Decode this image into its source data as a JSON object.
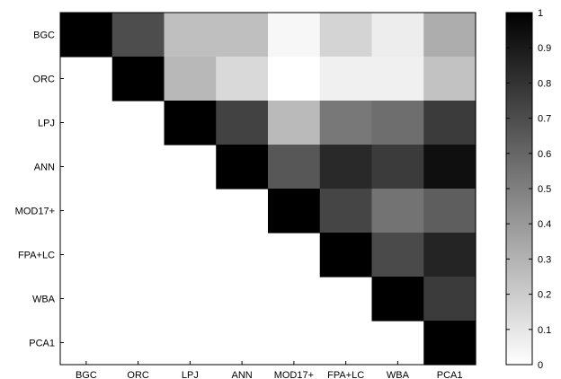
{
  "chart_data": {
    "type": "heatmap",
    "title": "",
    "xlabel": "",
    "ylabel": "",
    "x_categories": [
      "BGC",
      "ORC",
      "LPJ",
      "ANN",
      "MOD17+",
      "FPA+LC",
      "WBA",
      "PCA1"
    ],
    "y_categories": [
      "BGC",
      "ORC",
      "LPJ",
      "ANN",
      "MOD17+",
      "FPA+LC",
      "WBA",
      "PCA1"
    ],
    "matrix": [
      [
        1.0,
        0.7,
        0.25,
        0.25,
        0.03,
        0.17,
        0.07,
        0.32
      ],
      [
        null,
        1.0,
        0.28,
        0.15,
        0.0,
        0.06,
        0.06,
        0.24
      ],
      [
        null,
        null,
        1.0,
        0.74,
        0.27,
        0.53,
        0.57,
        0.77
      ],
      [
        null,
        null,
        null,
        1.0,
        0.66,
        0.84,
        0.77,
        0.94
      ],
      [
        null,
        null,
        null,
        null,
        1.0,
        0.73,
        0.55,
        0.63
      ],
      [
        null,
        null,
        null,
        null,
        null,
        1.0,
        0.71,
        0.86
      ],
      [
        null,
        null,
        null,
        null,
        null,
        null,
        1.0,
        0.77
      ],
      [
        null,
        null,
        null,
        null,
        null,
        null,
        null,
        1.0
      ]
    ],
    "colorbar": {
      "colormap": "gray_reversed",
      "range": [
        0,
        1
      ],
      "ticks": [
        "0",
        "0.1",
        "0.2",
        "0.3",
        "0.4",
        "0.5",
        "0.6",
        "0.7",
        "0.8",
        "0.9",
        "1"
      ]
    },
    "lower_triangle": "blank",
    "grid": false
  }
}
